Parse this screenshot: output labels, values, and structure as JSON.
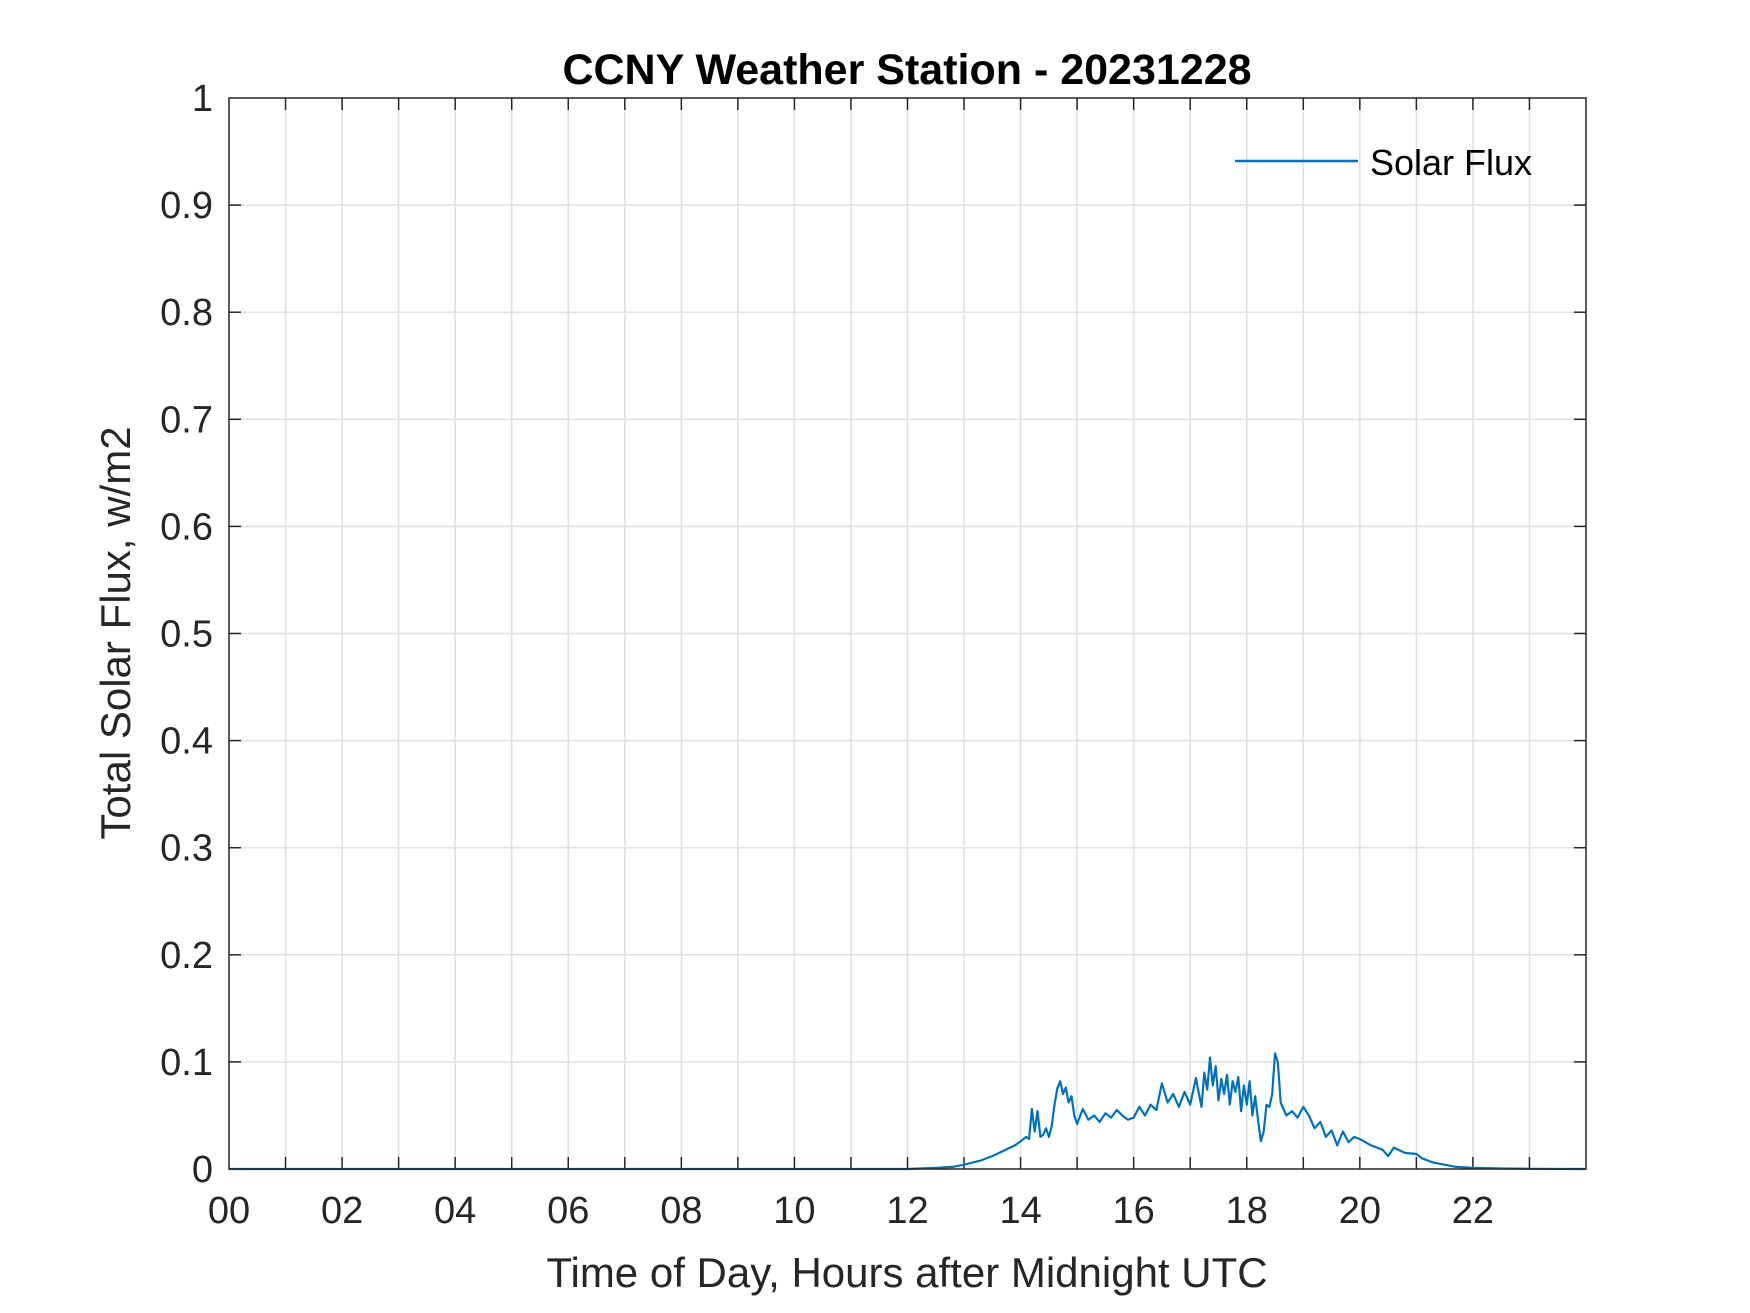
{
  "chart_data": {
    "type": "line",
    "title": "CCNY Weather Station - 20231228",
    "xlabel": "Time of Day, Hours after Midnight UTC",
    "ylabel": "Total Solar Flux, w/m2",
    "xlim": [
      0,
      24
    ],
    "ylim": [
      0,
      1
    ],
    "x_ticks": [
      0,
      2,
      4,
      6,
      8,
      10,
      12,
      14,
      16,
      18,
      20,
      22
    ],
    "x_tick_labels": [
      "00",
      "02",
      "04",
      "06",
      "08",
      "10",
      "12",
      "14",
      "16",
      "18",
      "20",
      "22"
    ],
    "y_ticks": [
      0,
      0.1,
      0.2,
      0.3,
      0.4,
      0.5,
      0.6,
      0.7,
      0.8,
      0.9,
      1
    ],
    "y_tick_labels": [
      "0",
      "0.1",
      "0.2",
      "0.3",
      "0.4",
      "0.5",
      "0.6",
      "0.7",
      "0.8",
      "0.9",
      "1"
    ],
    "grid": true,
    "legend_position": "top-right",
    "series": [
      {
        "name": "Solar Flux",
        "color": "#0072BD",
        "x": [
          0,
          12.0,
          12.5,
          12.8,
          13.0,
          13.3,
          13.5,
          13.7,
          13.9,
          14.0,
          14.1,
          14.15,
          14.2,
          14.25,
          14.3,
          14.35,
          14.4,
          14.45,
          14.5,
          14.55,
          14.6,
          14.65,
          14.7,
          14.75,
          14.8,
          14.85,
          14.9,
          14.95,
          15.0,
          15.1,
          15.2,
          15.3,
          15.4,
          15.5,
          15.6,
          15.7,
          15.8,
          15.9,
          16.0,
          16.1,
          16.2,
          16.3,
          16.4,
          16.5,
          16.6,
          16.7,
          16.8,
          16.9,
          17.0,
          17.1,
          17.2,
          17.25,
          17.3,
          17.35,
          17.4,
          17.45,
          17.5,
          17.55,
          17.6,
          17.65,
          17.7,
          17.75,
          17.8,
          17.85,
          17.9,
          17.95,
          18.0,
          18.05,
          18.1,
          18.15,
          18.2,
          18.25,
          18.3,
          18.35,
          18.4,
          18.45,
          18.5,
          18.55,
          18.6,
          18.65,
          18.7,
          18.8,
          18.9,
          19.0,
          19.1,
          19.2,
          19.3,
          19.4,
          19.5,
          19.6,
          19.7,
          19.8,
          19.9,
          20.0,
          20.2,
          20.4,
          20.5,
          20.6,
          20.8,
          21.0,
          21.1,
          21.3,
          21.5,
          21.7,
          22.0,
          22.5,
          23.0,
          23.99
        ],
        "values": [
          0,
          0,
          0.001,
          0.002,
          0.004,
          0.008,
          0.012,
          0.017,
          0.022,
          0.026,
          0.03,
          0.028,
          0.056,
          0.035,
          0.054,
          0.03,
          0.032,
          0.038,
          0.03,
          0.04,
          0.06,
          0.075,
          0.082,
          0.07,
          0.076,
          0.062,
          0.068,
          0.05,
          0.042,
          0.056,
          0.046,
          0.05,
          0.044,
          0.052,
          0.048,
          0.055,
          0.05,
          0.046,
          0.048,
          0.058,
          0.05,
          0.06,
          0.055,
          0.08,
          0.062,
          0.07,
          0.058,
          0.072,
          0.06,
          0.085,
          0.058,
          0.09,
          0.074,
          0.104,
          0.078,
          0.096,
          0.064,
          0.084,
          0.07,
          0.088,
          0.06,
          0.082,
          0.072,
          0.086,
          0.054,
          0.078,
          0.06,
          0.082,
          0.05,
          0.068,
          0.045,
          0.026,
          0.035,
          0.06,
          0.058,
          0.07,
          0.108,
          0.1,
          0.062,
          0.056,
          0.05,
          0.054,
          0.048,
          0.058,
          0.05,
          0.038,
          0.044,
          0.03,
          0.036,
          0.022,
          0.035,
          0.025,
          0.03,
          0.028,
          0.022,
          0.018,
          0.012,
          0.02,
          0.015,
          0.014,
          0.01,
          0.006,
          0.004,
          0.002,
          0.001,
          0.0005,
          0.0002,
          0
        ]
      }
    ]
  }
}
